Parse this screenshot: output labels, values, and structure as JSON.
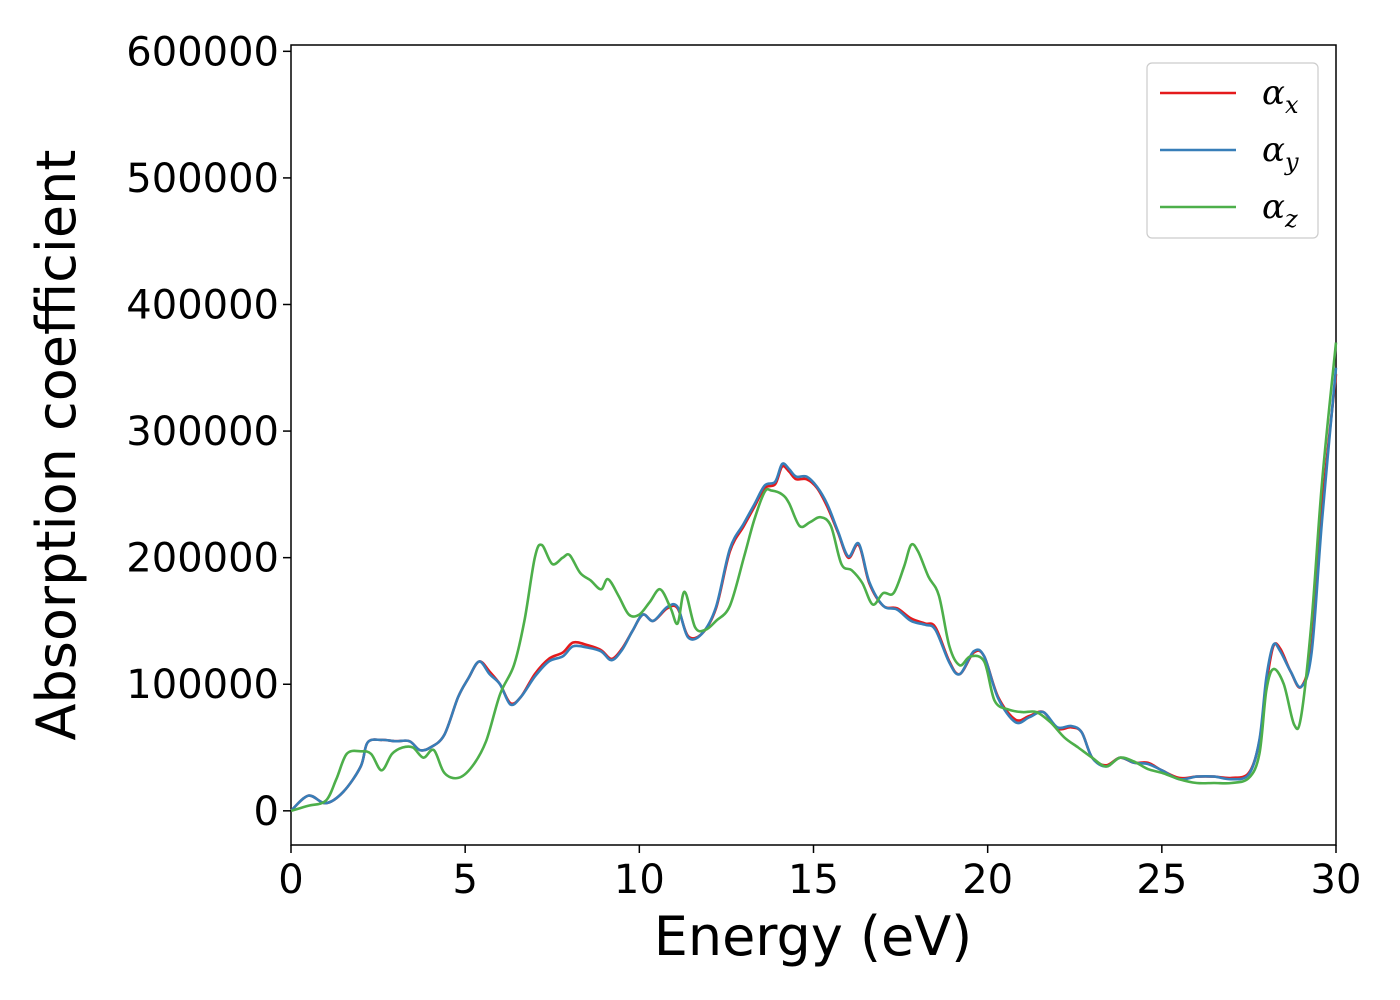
{
  "chart_data": {
    "type": "line",
    "xlabel": "Energy (eV)",
    "ylabel": "Absorption coefficient",
    "xlim": [
      0,
      30
    ],
    "ylim": [
      -27000,
      605000
    ],
    "xticks": [
      0,
      5,
      10,
      15,
      20,
      25,
      30
    ],
    "xtick_labels": [
      "0",
      "5",
      "10",
      "15",
      "20",
      "25",
      "30"
    ],
    "yticks": [
      0,
      100000,
      200000,
      300000,
      400000,
      500000,
      600000
    ],
    "ytick_labels": [
      "0",
      "100000",
      "200000",
      "300000",
      "400000",
      "500000",
      "600000"
    ],
    "grid": false,
    "legend_position": "top-right",
    "series": [
      {
        "name": "α",
        "sub": "x",
        "color": "#e41a1c",
        "x": [
          0,
          0.5,
          1.0,
          1.5,
          2.0,
          2.2,
          2.6,
          3.0,
          3.4,
          3.7,
          4.0,
          4.4,
          4.8,
          5.1,
          5.4,
          5.7,
          6.0,
          6.3,
          6.6,
          7.0,
          7.4,
          7.8,
          8.1,
          8.5,
          8.9,
          9.2,
          9.5,
          9.8,
          10.1,
          10.4,
          10.8,
          11.1,
          11.4,
          11.8,
          12.2,
          12.6,
          13.0,
          13.3,
          13.6,
          13.9,
          14.1,
          14.3,
          14.5,
          14.8,
          15.1,
          15.4,
          15.7,
          16.0,
          16.3,
          16.6,
          17.0,
          17.4,
          17.8,
          18.2,
          18.5,
          18.9,
          19.2,
          19.6,
          19.9,
          20.3,
          20.8,
          21.2,
          21.6,
          22.0,
          22.4,
          22.7,
          23.0,
          23.4,
          23.8,
          24.2,
          24.6,
          25.0,
          25.5,
          26.0,
          26.5,
          27.0,
          27.5,
          27.8,
          28.0,
          28.2,
          28.4,
          28.7,
          29.0,
          29.3,
          29.6,
          30.0
        ],
        "y": [
          0,
          12000,
          6000,
          15000,
          35000,
          54000,
          56000,
          55000,
          55000,
          48000,
          50000,
          60000,
          90000,
          105000,
          118000,
          110000,
          100000,
          85000,
          90000,
          108000,
          120000,
          125000,
          133000,
          131000,
          127000,
          120000,
          128000,
          142000,
          155000,
          150000,
          160000,
          160000,
          138000,
          140000,
          160000,
          205000,
          225000,
          240000,
          255000,
          258000,
          272000,
          268000,
          262000,
          262000,
          255000,
          240000,
          220000,
          200000,
          210000,
          180000,
          162000,
          160000,
          152000,
          148000,
          145000,
          118000,
          108000,
          125000,
          122000,
          90000,
          72000,
          75000,
          78000,
          65000,
          66000,
          62000,
          42000,
          36000,
          42000,
          38000,
          38000,
          32000,
          26000,
          27000,
          27000,
          26000,
          30000,
          55000,
          100000,
          130000,
          128000,
          110000,
          98000,
          130000,
          240000,
          345000
        ]
      },
      {
        "name": "α",
        "sub": "y",
        "color": "#377eb8",
        "x": [
          0,
          0.5,
          1.0,
          1.5,
          2.0,
          2.2,
          2.6,
          3.0,
          3.4,
          3.7,
          4.0,
          4.4,
          4.8,
          5.1,
          5.4,
          5.7,
          6.0,
          6.3,
          6.6,
          7.0,
          7.4,
          7.8,
          8.1,
          8.5,
          8.9,
          9.2,
          9.5,
          9.8,
          10.1,
          10.4,
          10.8,
          11.1,
          11.4,
          11.8,
          12.2,
          12.6,
          13.0,
          13.3,
          13.6,
          13.9,
          14.1,
          14.3,
          14.5,
          14.8,
          15.1,
          15.4,
          15.7,
          16.0,
          16.3,
          16.6,
          17.0,
          17.4,
          17.8,
          18.2,
          18.5,
          18.9,
          19.2,
          19.6,
          19.9,
          20.3,
          20.8,
          21.2,
          21.6,
          22.0,
          22.4,
          22.7,
          23.0,
          23.4,
          23.8,
          24.2,
          24.6,
          25.0,
          25.5,
          26.0,
          26.5,
          27.0,
          27.5,
          27.8,
          28.0,
          28.2,
          28.4,
          28.7,
          29.0,
          29.3,
          29.6,
          30.0
        ],
        "y": [
          0,
          12000,
          6000,
          15000,
          35000,
          54000,
          56000,
          55000,
          55000,
          48000,
          50000,
          60000,
          90000,
          105000,
          118000,
          108000,
          100000,
          84000,
          90000,
          106000,
          118000,
          122000,
          130000,
          129000,
          126000,
          119000,
          127000,
          142000,
          155000,
          150000,
          161000,
          161000,
          137000,
          140000,
          161000,
          207000,
          227000,
          242000,
          257000,
          260000,
          274000,
          270000,
          264000,
          264000,
          256000,
          242000,
          221000,
          201000,
          211000,
          181000,
          162000,
          159000,
          150000,
          147000,
          143000,
          117000,
          108000,
          126000,
          122000,
          89000,
          70000,
          74000,
          78000,
          66000,
          67000,
          62000,
          42000,
          35000,
          42000,
          38000,
          37000,
          32000,
          25000,
          27000,
          27000,
          25000,
          29000,
          56000,
          105000,
          131000,
          126000,
          110000,
          98000,
          125000,
          230000,
          350000
        ]
      },
      {
        "name": "α",
        "sub": "z",
        "color": "#4daf4a",
        "x": [
          0,
          0.5,
          1.0,
          1.3,
          1.6,
          2.0,
          2.3,
          2.6,
          2.9,
          3.2,
          3.5,
          3.8,
          4.1,
          4.4,
          4.8,
          5.2,
          5.6,
          6.0,
          6.4,
          6.7,
          7.0,
          7.2,
          7.5,
          7.8,
          8.0,
          8.3,
          8.6,
          8.9,
          9.1,
          9.4,
          9.7,
          10.0,
          10.3,
          10.6,
          10.9,
          11.1,
          11.3,
          11.6,
          11.9,
          12.2,
          12.6,
          13.0,
          13.3,
          13.6,
          13.8,
          14.1,
          14.3,
          14.6,
          14.9,
          15.2,
          15.5,
          15.8,
          16.1,
          16.4,
          16.7,
          17.0,
          17.3,
          17.6,
          17.8,
          18.0,
          18.3,
          18.6,
          18.9,
          19.2,
          19.5,
          19.9,
          20.2,
          20.6,
          21.0,
          21.4,
          21.8,
          22.2,
          22.6,
          23.0,
          23.4,
          23.8,
          24.2,
          24.6,
          25.0,
          25.5,
          26.0,
          26.5,
          27.0,
          27.5,
          27.8,
          28.0,
          28.2,
          28.5,
          28.8,
          29.0,
          29.3,
          29.6,
          30.0
        ],
        "y": [
          0,
          4000,
          8000,
          25000,
          45000,
          47000,
          45000,
          32000,
          45000,
          50000,
          50000,
          42000,
          48000,
          30000,
          26000,
          35000,
          55000,
          92000,
          115000,
          150000,
          200000,
          210000,
          195000,
          200000,
          202000,
          188000,
          182000,
          175000,
          183000,
          170000,
          155000,
          155000,
          165000,
          175000,
          160000,
          148000,
          173000,
          145000,
          143000,
          150000,
          162000,
          200000,
          230000,
          252000,
          253000,
          250000,
          243000,
          225000,
          228000,
          232000,
          225000,
          195000,
          190000,
          180000,
          163000,
          172000,
          172000,
          193000,
          210000,
          205000,
          185000,
          170000,
          130000,
          115000,
          122000,
          118000,
          87000,
          80000,
          78000,
          78000,
          70000,
          58000,
          50000,
          42000,
          35000,
          42000,
          39000,
          33000,
          30000,
          25000,
          22000,
          22000,
          22000,
          26000,
          45000,
          95000,
          112000,
          100000,
          68000,
          75000,
          150000,
          260000,
          370000
        ]
      }
    ]
  }
}
